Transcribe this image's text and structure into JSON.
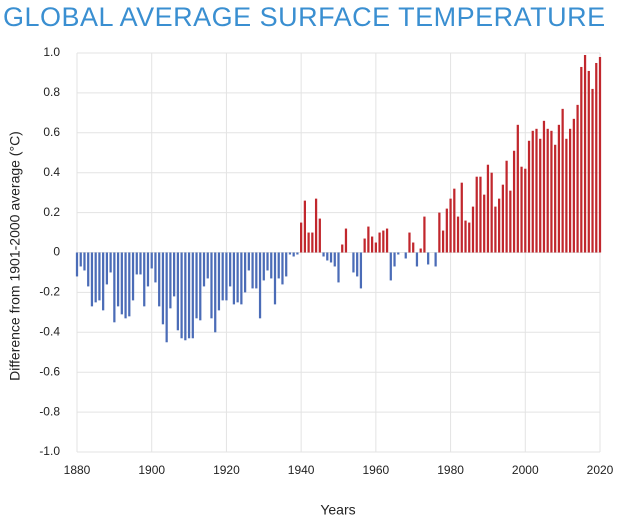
{
  "chart_data": {
    "type": "bar",
    "title": "GLOBAL AVERAGE SURFACE TEMPERATURE",
    "x_label": "Years",
    "y_label": "Difference from 1901-2000 average (°C)",
    "x": [
      1880,
      1881,
      1882,
      1883,
      1884,
      1885,
      1886,
      1887,
      1888,
      1889,
      1890,
      1891,
      1892,
      1893,
      1894,
      1895,
      1896,
      1897,
      1898,
      1899,
      1900,
      1901,
      1902,
      1903,
      1904,
      1905,
      1906,
      1907,
      1908,
      1909,
      1910,
      1911,
      1912,
      1913,
      1914,
      1915,
      1916,
      1917,
      1918,
      1919,
      1920,
      1921,
      1922,
      1923,
      1924,
      1925,
      1926,
      1927,
      1928,
      1929,
      1930,
      1931,
      1932,
      1933,
      1934,
      1935,
      1936,
      1937,
      1938,
      1939,
      1940,
      1941,
      1942,
      1943,
      1944,
      1945,
      1946,
      1947,
      1948,
      1949,
      1950,
      1951,
      1952,
      1953,
      1954,
      1955,
      1956,
      1957,
      1958,
      1959,
      1960,
      1961,
      1962,
      1963,
      1964,
      1965,
      1966,
      1967,
      1968,
      1969,
      1970,
      1971,
      1972,
      1973,
      1974,
      1975,
      1976,
      1977,
      1978,
      1979,
      1980,
      1981,
      1982,
      1983,
      1984,
      1985,
      1986,
      1987,
      1988,
      1989,
      1990,
      1991,
      1992,
      1993,
      1994,
      1995,
      1996,
      1997,
      1998,
      1999,
      2000,
      2001,
      2002,
      2003,
      2004,
      2005,
      2006,
      2007,
      2008,
      2009,
      2010,
      2011,
      2012,
      2013,
      2014,
      2015,
      2016,
      2017,
      2018,
      2019,
      2020
    ],
    "values": [
      -0.12,
      -0.07,
      -0.09,
      -0.17,
      -0.27,
      -0.25,
      -0.24,
      -0.29,
      -0.16,
      -0.1,
      -0.35,
      -0.27,
      -0.31,
      -0.33,
      -0.32,
      -0.24,
      -0.11,
      -0.11,
      -0.27,
      -0.17,
      -0.08,
      -0.15,
      -0.27,
      -0.36,
      -0.45,
      -0.28,
      -0.22,
      -0.39,
      -0.43,
      -0.44,
      -0.43,
      -0.43,
      -0.33,
      -0.34,
      -0.17,
      -0.13,
      -0.33,
      -0.4,
      -0.29,
      -0.24,
      -0.24,
      -0.17,
      -0.26,
      -0.25,
      -0.26,
      -0.2,
      -0.09,
      -0.18,
      -0.18,
      -0.33,
      -0.14,
      -0.09,
      -0.13,
      -0.26,
      -0.13,
      -0.16,
      -0.12,
      -0.01,
      -0.02,
      -0.01,
      0.15,
      0.26,
      0.1,
      0.1,
      0.27,
      0.17,
      -0.02,
      -0.04,
      -0.05,
      -0.07,
      -0.15,
      0.04,
      0.12,
      0.0,
      -0.1,
      -0.12,
      -0.18,
      0.07,
      0.13,
      0.08,
      0.05,
      0.1,
      0.11,
      0.12,
      -0.14,
      -0.07,
      -0.01,
      0.0,
      -0.03,
      0.1,
      0.05,
      -0.07,
      0.02,
      0.18,
      -0.06,
      0.0,
      -0.07,
      0.2,
      0.11,
      0.22,
      0.27,
      0.32,
      0.18,
      0.35,
      0.16,
      0.15,
      0.23,
      0.38,
      0.38,
      0.29,
      0.44,
      0.4,
      0.23,
      0.27,
      0.34,
      0.46,
      0.31,
      0.51,
      0.64,
      0.43,
      0.42,
      0.56,
      0.61,
      0.62,
      0.57,
      0.66,
      0.62,
      0.61,
      0.54,
      0.64,
      0.72,
      0.57,
      0.62,
      0.67,
      0.74,
      0.93,
      0.99,
      0.91,
      0.82,
      0.95,
      0.98
    ],
    "positive_color": "#c1272d",
    "negative_color": "#4b6cb7",
    "title_color": "#3a8fd1",
    "xlim": [
      1880,
      2020
    ],
    "xticks": [
      1880,
      1900,
      1920,
      1940,
      1960,
      1980,
      2000,
      2020
    ],
    "ylim": [
      -1,
      1
    ],
    "yticks": [
      {
        "value": 1,
        "label": "1.0"
      },
      0.8,
      0.6,
      0.4,
      0.2,
      0,
      -0.2,
      -0.4,
      -0.6,
      -0.8,
      {
        "value": -1,
        "label": "-1.0"
      }
    ],
    "grid": true
  }
}
